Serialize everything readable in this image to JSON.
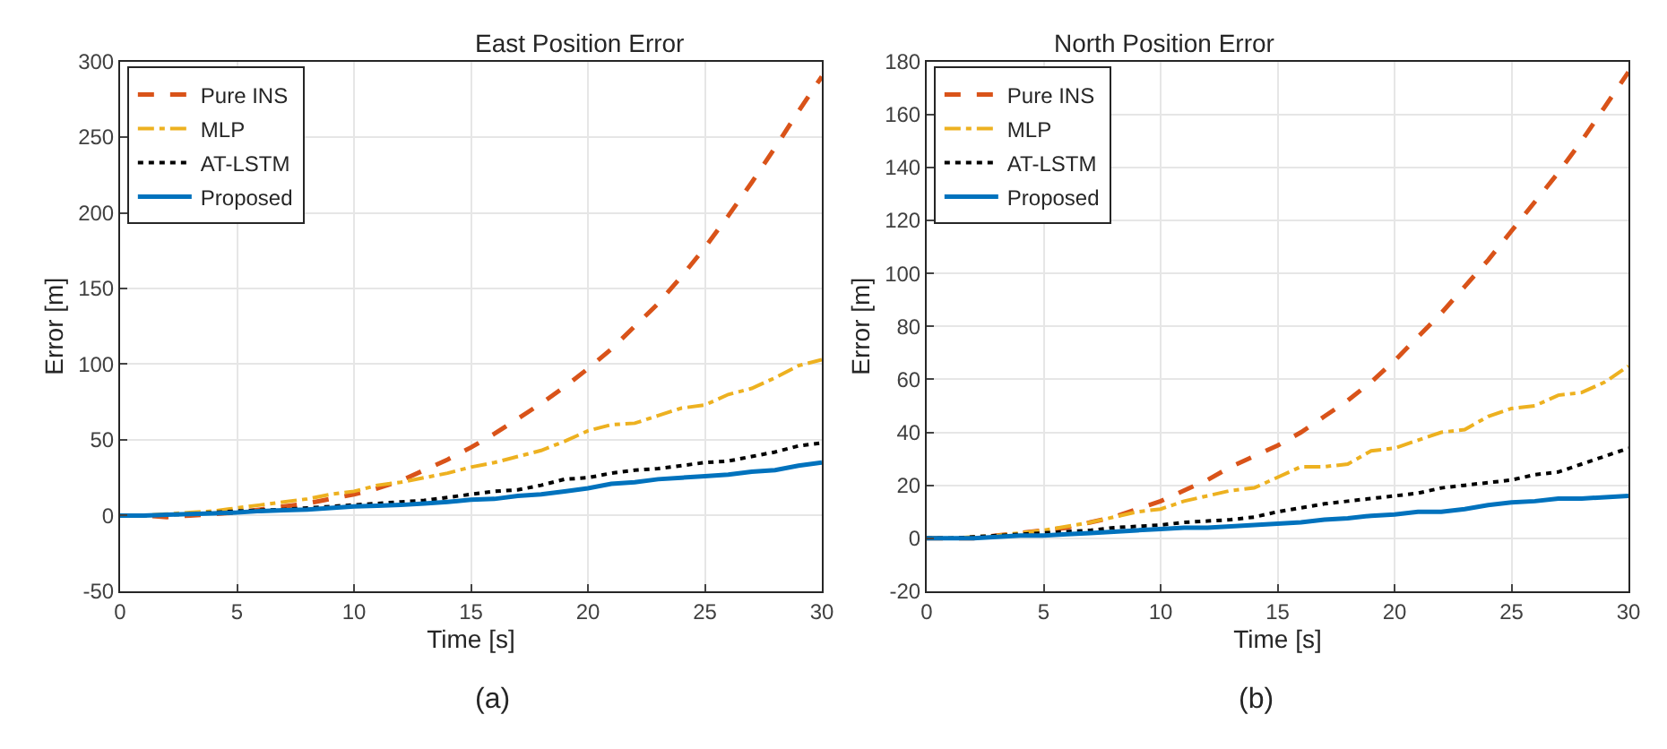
{
  "chart_data": [
    {
      "type": "line",
      "title": "East Position Error",
      "xlabel": "Time [s]",
      "ylabel": "Error [m]",
      "annotations": [
        "(a)"
      ],
      "grid": true,
      "legend": "top left",
      "x": [
        0,
        1,
        2,
        3,
        4,
        5,
        6,
        7,
        8,
        9,
        10,
        11,
        12,
        13,
        14,
        15,
        16,
        17,
        18,
        19,
        20,
        21,
        22,
        23,
        24,
        25,
        26,
        27,
        28,
        29,
        30
      ],
      "xlim": [
        0,
        30
      ],
      "xticks": [
        0,
        5,
        10,
        15,
        20,
        25,
        30
      ],
      "ylim": [
        -50,
        300
      ],
      "yticks": [
        -50,
        0,
        50,
        100,
        150,
        200,
        250,
        300
      ],
      "series": [
        {
          "name": "Pure INS",
          "color": "#d95319",
          "line_style": "dashed",
          "values": [
            0,
            0,
            -1,
            0,
            1,
            2,
            4,
            6,
            8,
            11,
            14,
            18,
            23,
            30,
            37,
            45,
            54,
            64,
            74,
            85,
            97,
            110,
            125,
            140,
            158,
            177,
            198,
            220,
            243,
            267,
            290
          ]
        },
        {
          "name": "MLP",
          "color": "#edb120",
          "line_style": "dashdot",
          "values": [
            0,
            0,
            1,
            2,
            3,
            5,
            7,
            9,
            11,
            14,
            16,
            20,
            22,
            25,
            28,
            32,
            35,
            39,
            43,
            49,
            56,
            60,
            61,
            66,
            71,
            73,
            80,
            84,
            91,
            99,
            103
          ]
        },
        {
          "name": "AT-LSTM",
          "color": "#000000",
          "line_style": "dotted",
          "values": [
            0,
            0,
            0.5,
            1,
            2,
            3,
            3.5,
            4,
            5,
            6,
            7,
            8,
            9,
            10,
            12,
            14,
            16,
            17,
            20,
            24,
            25,
            28,
            30,
            31,
            33,
            35,
            36,
            39,
            42,
            46,
            48
          ]
        },
        {
          "name": "Proposed",
          "color": "#0072bd",
          "line_style": "solid",
          "values": [
            0,
            0,
            0.5,
            1,
            1.5,
            2,
            3,
            3.5,
            4,
            5,
            6,
            6.5,
            7,
            8,
            9,
            10.5,
            11,
            13,
            14,
            16,
            18,
            21,
            22,
            24,
            25,
            26,
            27,
            29,
            30,
            33,
            35
          ]
        }
      ]
    },
    {
      "type": "line",
      "title": "North Position Error",
      "xlabel": "Time [s]",
      "ylabel": "Error [m]",
      "annotations": [
        "(b)"
      ],
      "grid": true,
      "legend": "top left",
      "x": [
        0,
        1,
        2,
        3,
        4,
        5,
        6,
        7,
        8,
        9,
        10,
        11,
        12,
        13,
        14,
        15,
        16,
        17,
        18,
        19,
        20,
        21,
        22,
        23,
        24,
        25,
        26,
        27,
        28,
        29,
        30
      ],
      "xlim": [
        0,
        30
      ],
      "xticks": [
        0,
        5,
        10,
        15,
        20,
        25,
        30
      ],
      "ylim": [
        -20,
        180
      ],
      "yticks": [
        -20,
        0,
        20,
        40,
        60,
        80,
        100,
        120,
        140,
        160,
        180
      ],
      "series": [
        {
          "name": "Pure INS",
          "color": "#d95319",
          "line_style": "dashed",
          "values": [
            0,
            0,
            0,
            1,
            2,
            3,
            4,
            6,
            8,
            11,
            14,
            18,
            22,
            27,
            31,
            35,
            40,
            46,
            52,
            59,
            67,
            76,
            85,
            95,
            105,
            116,
            127,
            138,
            150,
            163,
            176
          ]
        },
        {
          "name": "MLP",
          "color": "#edb120",
          "line_style": "dashdot",
          "values": [
            0,
            0,
            0.5,
            1,
            2,
            3,
            4.5,
            6,
            8,
            10,
            11,
            14,
            16,
            18,
            19,
            23,
            27,
            27,
            28,
            33,
            34,
            37,
            40,
            41,
            46,
            49,
            50,
            54,
            55,
            59,
            65
          ]
        },
        {
          "name": "AT-LSTM",
          "color": "#000000",
          "line_style": "dotted",
          "values": [
            0,
            0,
            0.5,
            1,
            1.5,
            2,
            2.5,
            3,
            4,
            4.5,
            5,
            6,
            6.5,
            7,
            8,
            10,
            11.5,
            13,
            14,
            15,
            16,
            17,
            19,
            20,
            21,
            22,
            24,
            25,
            28,
            31,
            34
          ]
        },
        {
          "name": "Proposed",
          "color": "#0072bd",
          "line_style": "solid",
          "values": [
            0,
            0,
            0,
            0.5,
            1,
            1,
            1.5,
            2,
            2.5,
            3,
            3.5,
            4,
            4,
            4.5,
            5,
            5.5,
            6,
            7,
            7.5,
            8.5,
            9,
            10,
            10,
            11,
            12.5,
            13.5,
            14,
            15,
            15,
            15.5,
            16
          ]
        }
      ]
    }
  ]
}
